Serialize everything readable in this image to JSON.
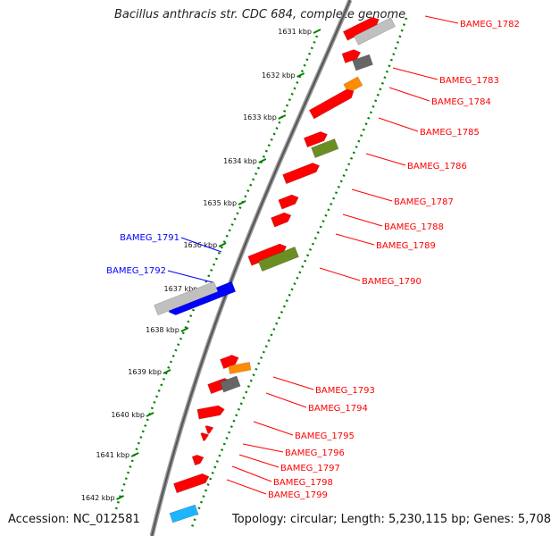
{
  "title": "Bacillus anthracis str. CDC 684, complete genome",
  "footer": {
    "accession": "Accession: NC_012581",
    "summary": "Topology: circular; Length: 5,230,115 bp; Genes: 5,708"
  },
  "colors": {
    "forward_gene": "#ff0000",
    "reverse_gene": "#0000ff",
    "orange_feature": "#ff8c00",
    "olive_feature": "#6b8e23",
    "gray_feature": "#666666",
    "light_feature": "#c0c0c0",
    "cyan_feature": "#1eb4ff",
    "tick_track": "#008000"
  },
  "ticks": [
    "1631 kbp",
    "1632 kbp",
    "1633 kbp",
    "1634 kbp",
    "1635 kbp",
    "1636 kbp",
    "1637 kbp",
    "1638 kbp",
    "1639 kbp",
    "1640 kbp",
    "1641 kbp",
    "1642 kbp"
  ],
  "genes_right": [
    "BAMEG_1782",
    "BAMEG_1783",
    "BAMEG_1784",
    "BAMEG_1785",
    "BAMEG_1786",
    "BAMEG_1787",
    "BAMEG_1788",
    "BAMEG_1789",
    "BAMEG_1790",
    "BAMEG_1793",
    "BAMEG_1794",
    "BAMEG_1795",
    "BAMEG_1796",
    "BAMEG_1797",
    "BAMEG_1798",
    "BAMEG_1799"
  ],
  "genes_left": [
    "BAMEG_1791",
    "BAMEG_1792"
  ]
}
